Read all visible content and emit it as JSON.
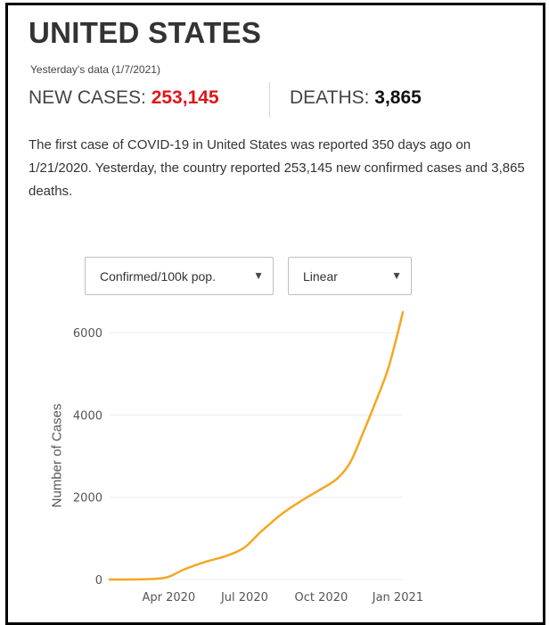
{
  "header": {
    "title": "UNITED STATES",
    "date_text": "Yesterday's data (1/7/2021)",
    "new_cases_label": "NEW CASES: ",
    "new_cases_value": "253,145",
    "deaths_label": "DEATHS: ",
    "deaths_value": "3,865",
    "description": "The first case of COVID-19 in United States was reported 350 days ago on 1/21/2020. Yesterday, the country reported 253,145 new confirmed cases and 3,865 deaths."
  },
  "controls": {
    "metric_select": "Confirmed/100k pop.",
    "scale_select": "Linear"
  },
  "colors": {
    "accent_red": "#e0141c",
    "line": "#f5a623"
  },
  "chart_data": {
    "type": "line",
    "title": "",
    "xlabel": "",
    "ylabel": "Number of Cases",
    "ylim": [
      0,
      6500
    ],
    "yticks": [
      0,
      2000,
      4000,
      6000
    ],
    "ytick_labels": [
      "0",
      "2000",
      "4000",
      "6000"
    ],
    "xlim": [
      "2020-01-21",
      "2021-01-07"
    ],
    "xticks": [
      "2020-04-01",
      "2020-07-01",
      "2020-10-01",
      "2021-01-01"
    ],
    "xtick_labels": [
      "Apr 2020",
      "Jul 2020",
      "Oct 2020",
      "Jan 2021"
    ],
    "grid": true,
    "scale": "linear",
    "series": [
      {
        "x": [
          "2020-01-21",
          "2020-02-15",
          "2020-03-15",
          "2020-04-01",
          "2020-04-20",
          "2020-05-15",
          "2020-06-10",
          "2020-07-01",
          "2020-07-20",
          "2020-08-15",
          "2020-09-10",
          "2020-10-01",
          "2020-10-20",
          "2020-11-05",
          "2020-11-20",
          "2020-12-05",
          "2020-12-20",
          "2021-01-01",
          "2021-01-07"
        ],
        "values": [
          0,
          2,
          15,
          70,
          250,
          430,
          580,
          780,
          1150,
          1600,
          1950,
          2200,
          2450,
          2850,
          3550,
          4300,
          5100,
          6000,
          6500
        ]
      }
    ]
  }
}
